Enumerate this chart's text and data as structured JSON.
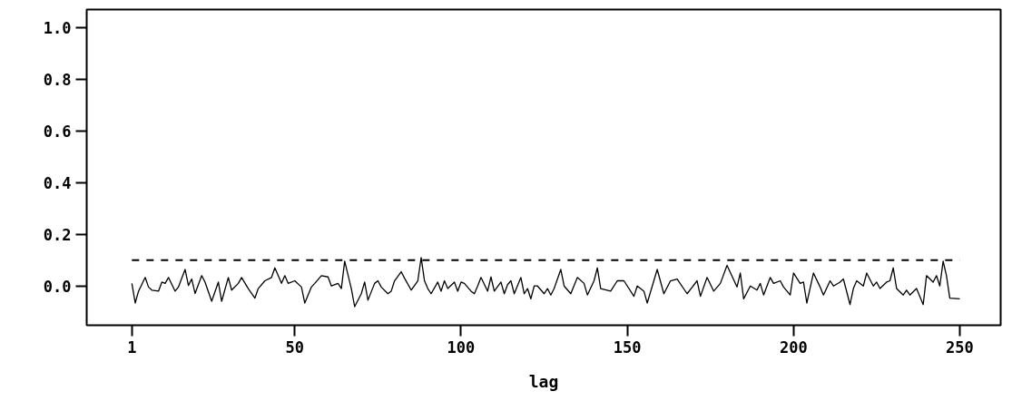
{
  "chart_data": {
    "type": "line",
    "xlabel": "lag",
    "x": [
      1,
      2,
      3,
      5,
      6,
      7,
      9,
      10,
      11,
      12,
      14,
      15,
      17,
      18,
      19,
      20,
      22,
      23,
      25,
      27,
      28,
      30,
      31,
      33,
      34,
      36,
      38,
      39,
      41,
      43,
      44,
      46,
      47,
      48,
      50,
      52,
      53,
      55,
      56,
      58,
      60,
      61,
      63,
      64,
      65,
      67,
      68,
      70,
      71,
      72,
      74,
      75,
      76,
      78,
      79,
      80,
      82,
      83,
      85,
      87,
      88,
      89,
      90,
      91,
      93,
      94,
      95,
      96,
      98,
      99,
      100,
      101,
      103,
      104,
      105,
      106,
      108,
      109,
      110,
      112,
      113,
      114,
      115,
      116,
      118,
      119,
      120,
      121,
      122,
      123,
      125,
      126,
      127,
      128,
      130,
      131,
      133,
      135,
      137,
      138,
      140,
      141,
      142,
      145,
      147,
      149,
      152,
      153,
      155,
      156,
      159,
      161,
      163,
      165,
      168,
      171,
      172,
      174,
      176,
      178,
      180,
      183,
      184,
      185,
      187,
      189,
      190,
      191,
      193,
      194,
      196,
      197,
      199,
      200,
      202,
      203,
      204,
      206,
      208,
      209,
      211,
      212,
      214,
      215,
      217,
      218,
      219,
      221,
      222,
      224,
      225,
      226,
      228,
      229,
      230,
      231,
      233,
      234,
      235,
      237,
      239,
      240,
      242,
      243,
      244,
      245,
      246,
      247,
      250
    ],
    "values": [
      0.01,
      -0.066,
      -0.02,
      0.033,
      -0.004,
      -0.016,
      -0.02,
      0.015,
      0.01,
      0.033,
      -0.02,
      -0.004,
      0.064,
      0.002,
      0.027,
      -0.029,
      0.04,
      0.015,
      -0.059,
      0.015,
      -0.059,
      0.033,
      -0.016,
      0.01,
      0.033,
      -0.01,
      -0.047,
      -0.01,
      0.02,
      0.033,
      0.07,
      0.01,
      0.04,
      0.01,
      0.02,
      -0.004,
      -0.066,
      -0.004,
      0.01,
      0.04,
      0.035,
      0.0,
      0.01,
      -0.01,
      0.096,
      -0.01,
      -0.08,
      -0.03,
      0.015,
      -0.055,
      0.01,
      0.02,
      -0.004,
      -0.03,
      -0.02,
      0.02,
      0.055,
      0.03,
      -0.016,
      0.02,
      0.11,
      0.02,
      -0.01,
      -0.03,
      0.015,
      -0.02,
      0.02,
      -0.01,
      0.015,
      -0.02,
      0.015,
      0.01,
      -0.02,
      -0.03,
      0.0,
      0.033,
      -0.02,
      0.035,
      -0.02,
      0.015,
      -0.03,
      0.005,
      0.02,
      -0.03,
      0.033,
      -0.03,
      -0.01,
      -0.05,
      0.0,
      0.0,
      -0.03,
      -0.01,
      -0.035,
      -0.01,
      0.064,
      0.0,
      -0.03,
      0.033,
      0.01,
      -0.035,
      0.02,
      0.07,
      -0.01,
      -0.02,
      0.02,
      0.02,
      -0.04,
      0.0,
      -0.02,
      -0.066,
      0.064,
      -0.03,
      0.02,
      0.027,
      -0.03,
      0.02,
      -0.04,
      0.033,
      -0.02,
      0.01,
      0.08,
      -0.004,
      0.05,
      -0.05,
      0.0,
      -0.016,
      0.01,
      -0.035,
      0.033,
      0.01,
      0.02,
      -0.004,
      -0.035,
      0.05,
      0.01,
      0.015,
      -0.066,
      0.05,
      -0.004,
      -0.035,
      0.02,
      0.0,
      0.015,
      0.027,
      -0.072,
      -0.01,
      0.02,
      0.0,
      0.05,
      0.0,
      0.015,
      -0.01,
      0.015,
      0.02,
      0.07,
      -0.01,
      -0.035,
      -0.016,
      -0.035,
      -0.01,
      -0.072,
      0.04,
      0.015,
      0.04,
      0.0,
      0.096,
      0.04,
      -0.047,
      -0.05
    ],
    "color": "#000000",
    "xlim": [
      -12.6,
      262.3
    ],
    "xticks": [
      1,
      50,
      100,
      150,
      200,
      250
    ],
    "ylim": [
      -0.152,
      1.07
    ],
    "yticks": [
      {
        "value": 0,
        "label": "0.0"
      },
      {
        "value": 0.2,
        "label": "0.2"
      },
      {
        "value": 0.4,
        "label": "0.4"
      },
      {
        "value": 0.6,
        "label": "0.6"
      },
      {
        "value": 0.8,
        "label": "0.8"
      },
      {
        "value": 1,
        "label": "1.0"
      }
    ],
    "ref_lines": [
      {
        "axis": "y",
        "value": 0.1,
        "color": "#000000",
        "line_style": "dashed"
      }
    ],
    "grid": false
  }
}
